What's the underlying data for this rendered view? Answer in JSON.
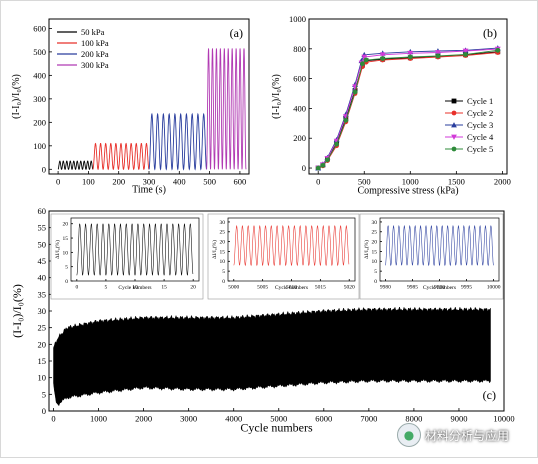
{
  "chart_data": [
    {
      "type": "line",
      "panel_label": "(a)",
      "xlabel": "Time (s)",
      "ylabel": "(I-I₀)/I₀(%)",
      "xlim": [
        -30,
        630
      ],
      "ylim": [
        -20,
        640
      ],
      "xticks": [
        0,
        100,
        200,
        300,
        400,
        500,
        600
      ],
      "yticks": [
        0,
        100,
        200,
        300,
        400,
        500,
        600
      ],
      "legend_position": "top-left",
      "series": [
        {
          "name": "50 kPa",
          "color": "#000000",
          "t_start": 0,
          "t_end": 115,
          "peak": 35,
          "cycles": 10
        },
        {
          "name": "100 kPa",
          "color": "#e8302a",
          "t_start": 115,
          "t_end": 300,
          "peak": 110,
          "cycles": 11
        },
        {
          "name": "200 kPa",
          "color": "#2a3e9e",
          "t_start": 300,
          "t_end": 490,
          "peak": 235,
          "cycles": 10
        },
        {
          "name": "300 kPa",
          "color": "#b13ab3",
          "t_start": 490,
          "t_end": 620,
          "peak": 515,
          "cycles": 10
        }
      ]
    },
    {
      "type": "scatter",
      "panel_label": "(b)",
      "xlabel": "Compressive stress (kPa)",
      "ylabel": "(I-I₀)/I₀(%)",
      "xlim": [
        -100,
        2050
      ],
      "ylim": [
        -40,
        1000
      ],
      "xticks": [
        0,
        500,
        1000,
        1500,
        2000
      ],
      "yticks": [
        0,
        200,
        400,
        600,
        800,
        1000
      ],
      "legend_position": "bottom-right",
      "series": [
        {
          "name": "Cycle 1",
          "color": "#000000",
          "marker": "square",
          "points": [
            [
              0,
              0
            ],
            [
              50,
              20
            ],
            [
              100,
              60
            ],
            [
              200,
              170
            ],
            [
              300,
              330
            ],
            [
              400,
              520
            ],
            [
              480,
              690
            ],
            [
              520,
              720
            ],
            [
              700,
              730
            ],
            [
              1000,
              740
            ],
            [
              1300,
              750
            ],
            [
              1600,
              760
            ],
            [
              1950,
              780
            ]
          ]
        },
        {
          "name": "Cycle 2",
          "color": "#e8302a",
          "marker": "circle",
          "points": [
            [
              0,
              0
            ],
            [
              50,
              15
            ],
            [
              100,
              50
            ],
            [
              200,
              150
            ],
            [
              300,
              310
            ],
            [
              400,
              500
            ],
            [
              480,
              680
            ],
            [
              520,
              710
            ],
            [
              700,
              725
            ],
            [
              1000,
              735
            ],
            [
              1300,
              745
            ],
            [
              1600,
              755
            ],
            [
              1950,
              775
            ]
          ]
        },
        {
          "name": "Cycle 3",
          "color": "#2a3e9e",
          "marker": "triangle-up",
          "points": [
            [
              0,
              0
            ],
            [
              50,
              25
            ],
            [
              100,
              70
            ],
            [
              200,
              190
            ],
            [
              300,
              360
            ],
            [
              400,
              560
            ],
            [
              470,
              720
            ],
            [
              500,
              760
            ],
            [
              700,
              770
            ],
            [
              1000,
              780
            ],
            [
              1300,
              785
            ],
            [
              1600,
              790
            ],
            [
              1950,
              805
            ]
          ]
        },
        {
          "name": "Cycle 4",
          "color": "#d23ad8",
          "marker": "triangle-down",
          "points": [
            [
              0,
              0
            ],
            [
              50,
              22
            ],
            [
              100,
              65
            ],
            [
              200,
              180
            ],
            [
              300,
              345
            ],
            [
              400,
              545
            ],
            [
              470,
              705
            ],
            [
              500,
              745
            ],
            [
              700,
              760
            ],
            [
              1000,
              770
            ],
            [
              1300,
              775
            ],
            [
              1600,
              785
            ],
            [
              1950,
              798
            ]
          ]
        },
        {
          "name": "Cycle 5",
          "color": "#2e8b3a",
          "marker": "circle",
          "points": [
            [
              0,
              0
            ],
            [
              50,
              18
            ],
            [
              100,
              55
            ],
            [
              200,
              160
            ],
            [
              300,
              320
            ],
            [
              400,
              510
            ],
            [
              480,
              700
            ],
            [
              520,
              725
            ],
            [
              700,
              735
            ],
            [
              1000,
              745
            ],
            [
              1300,
              752
            ],
            [
              1600,
              762
            ],
            [
              1950,
              790
            ]
          ]
        }
      ]
    },
    {
      "type": "line",
      "panel_label": "(c)",
      "xlabel": "Cycle numbers",
      "ylabel": "(I-I₀)/I₀(%)",
      "xlim": [
        -100,
        10000
      ],
      "ylim": [
        0,
        60
      ],
      "xticks": [
        0,
        1000,
        2000,
        3000,
        4000,
        5000,
        6000,
        7000,
        8000,
        9000,
        10000
      ],
      "yticks": [
        0,
        5,
        10,
        15,
        20,
        25,
        30,
        35,
        40,
        45,
        50,
        55,
        60
      ],
      "color": "#000000",
      "envelope_upper": [
        [
          0,
          19
        ],
        [
          100,
          22
        ],
        [
          300,
          25
        ],
        [
          1000,
          27
        ],
        [
          2000,
          28
        ],
        [
          3000,
          28
        ],
        [
          4000,
          28
        ],
        [
          5000,
          29
        ],
        [
          6000,
          30
        ],
        [
          7000,
          30.5
        ],
        [
          8000,
          30.5
        ],
        [
          9000,
          30.5
        ],
        [
          9700,
          30.5
        ]
      ],
      "envelope_lower": [
        [
          0,
          8
        ],
        [
          50,
          3
        ],
        [
          100,
          2
        ],
        [
          300,
          4
        ],
        [
          1000,
          5.5
        ],
        [
          2000,
          7
        ],
        [
          3000,
          6.5
        ],
        [
          4000,
          6.5
        ],
        [
          5000,
          7.5
        ],
        [
          6000,
          8.5
        ],
        [
          7000,
          9
        ],
        [
          8000,
          9
        ],
        [
          9000,
          9
        ],
        [
          9700,
          9
        ]
      ],
      "insets": [
        {
          "color": "#000000",
          "xlabel": "Cycle numbers",
          "ylabel": "ΔI/I₀(%)",
          "xlim": [
            -1,
            21
          ],
          "ylim": [
            0,
            22
          ],
          "xticks": [
            0,
            5,
            10,
            15,
            20
          ],
          "yticks": [
            0,
            5,
            10,
            15,
            20
          ],
          "low": 2,
          "high": 20
        },
        {
          "color": "#e8302a",
          "xlabel": "Cycle numbers",
          "ylabel": "ΔI/I₀(%)",
          "xlim": [
            4999,
            5021
          ],
          "ylim": [
            0,
            32
          ],
          "xticks": [
            5000,
            5005,
            5010,
            5015,
            5020
          ],
          "yticks": [
            0,
            5,
            10,
            15,
            20,
            25,
            30
          ],
          "low": 8,
          "high": 28
        },
        {
          "color": "#2a3e9e",
          "xlabel": "Cycle numbers",
          "ylabel": "ΔI/I₀(%)",
          "xlim": [
            9979,
            10001
          ],
          "ylim": [
            0,
            32
          ],
          "xticks": [
            9980,
            9985,
            9990,
            9995,
            10000
          ],
          "yticks": [
            0,
            5,
            10,
            15,
            20,
            25,
            30
          ],
          "low": 8,
          "high": 28
        }
      ]
    }
  ],
  "watermark": {
    "text": "材料分析与应用",
    "icon": "wechat-icon"
  }
}
